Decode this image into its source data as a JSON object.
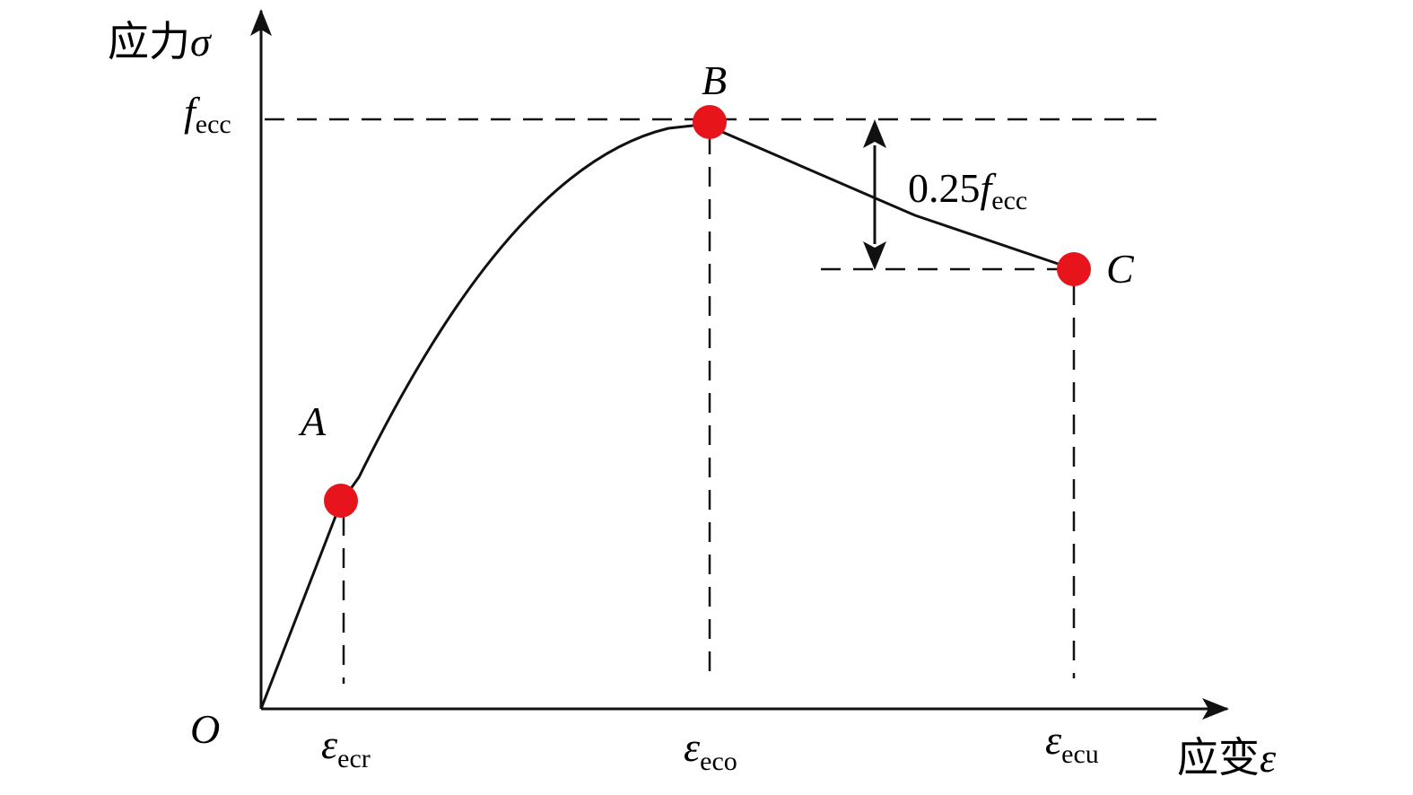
{
  "axes": {
    "y_label": {
      "text": "应力",
      "symbol": "σ"
    },
    "x_label": {
      "text": "应变",
      "symbol": "ε"
    },
    "origin": "O"
  },
  "y_marks": [
    {
      "symbol": "f",
      "sub": "ecc"
    }
  ],
  "x_marks": [
    {
      "symbol": "ε",
      "sub": "ecr"
    },
    {
      "symbol": "ε",
      "sub": "eco"
    },
    {
      "symbol": "ε",
      "sub": "ecu"
    }
  ],
  "points": [
    {
      "label": "A"
    },
    {
      "label": "B"
    },
    {
      "label": "C"
    }
  ],
  "annotation": {
    "prefix": "0.25",
    "symbol": "f",
    "sub": "ecc"
  }
}
